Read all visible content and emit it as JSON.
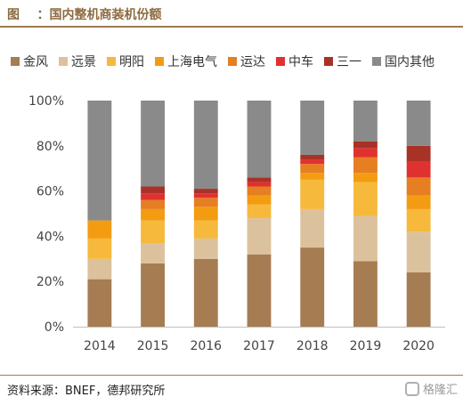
{
  "header": {
    "figure_label": "图",
    "separator": "：",
    "title": "国内整机商装机份额"
  },
  "footer": {
    "source": "资料来源：BNEF，德邦研究所"
  },
  "watermark": {
    "text": "格隆汇"
  },
  "colors": {
    "header": "#8c6a3f",
    "rule": "#9d7b52"
  },
  "chart_data": {
    "type": "bar",
    "stacked": true,
    "categories": [
      "2014",
      "2015",
      "2016",
      "2017",
      "2018",
      "2019",
      "2020"
    ],
    "ylim": [
      0,
      100
    ],
    "yticks": [
      0,
      20,
      40,
      60,
      80,
      100
    ],
    "ytick_labels": [
      "0%",
      "20%",
      "40%",
      "60%",
      "80%",
      "100%"
    ],
    "legend_position": "top",
    "grid": false,
    "series": [
      {
        "name": "金风",
        "color": "#a67c52",
        "values": [
          21,
          28,
          30,
          32,
          35,
          29,
          24
        ]
      },
      {
        "name": "远景",
        "color": "#dcc29c",
        "values": [
          9,
          9,
          9,
          16,
          17,
          20,
          18
        ]
      },
      {
        "name": "明阳",
        "color": "#f6b93b",
        "values": [
          9,
          10,
          8,
          6,
          13,
          15,
          10
        ]
      },
      {
        "name": "上海电气",
        "color": "#f39c12",
        "values": [
          8,
          5,
          6,
          4,
          3,
          4,
          6
        ]
      },
      {
        "name": "运达",
        "color": "#e67e22",
        "values": [
          0,
          4,
          4,
          4,
          4,
          7,
          8
        ]
      },
      {
        "name": "中车",
        "color": "#e03131",
        "values": [
          0,
          3,
          2,
          2,
          2,
          4,
          7
        ]
      },
      {
        "name": "三一",
        "color": "#a93226",
        "values": [
          0,
          3,
          2,
          2,
          2,
          3,
          7
        ]
      },
      {
        "name": "国内其他",
        "color": "#8a8a8a",
        "values": [
          53,
          38,
          39,
          34,
          24,
          18,
          20
        ]
      }
    ]
  }
}
